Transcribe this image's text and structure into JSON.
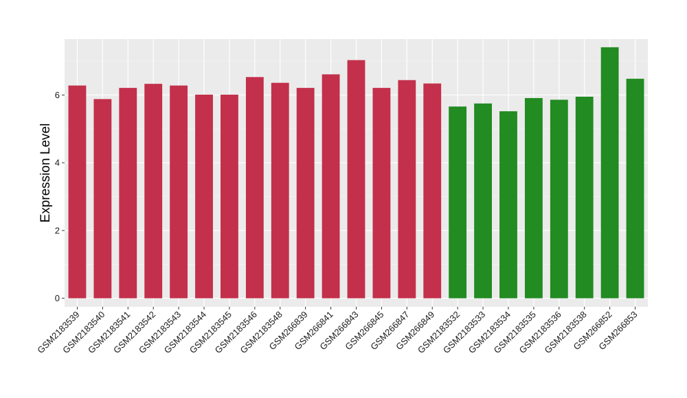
{
  "chart_data": {
    "type": "bar",
    "title": "",
    "xlabel": "",
    "ylabel": "Expression Level",
    "ylim": [
      -0.25,
      7.65
    ],
    "yticks": [
      0,
      2,
      4,
      6
    ],
    "grid": true,
    "legend": "none",
    "colors": {
      "panel_background": "#ebebeb",
      "grid_major": "#ffffff",
      "grid_minor": "#f5f5f5",
      "group_a": "#c3304b",
      "group_b": "#228b22"
    },
    "categories": [
      "GSM2183539",
      "GSM2183540",
      "GSM2183541",
      "GSM2183542",
      "GSM2183543",
      "GSM2183544",
      "GSM2183545",
      "GSM2183546",
      "GSM2183548",
      "GSM266839",
      "GSM266841",
      "GSM266843",
      "GSM266845",
      "GSM266847",
      "GSM266849",
      "GSM2183532",
      "GSM2183533",
      "GSM2183534",
      "GSM2183535",
      "GSM2183536",
      "GSM2183538",
      "GSM266852",
      "GSM266853"
    ],
    "values": [
      6.28,
      5.88,
      6.21,
      6.33,
      6.28,
      6.01,
      6.01,
      6.53,
      6.36,
      6.21,
      6.61,
      7.03,
      6.21,
      6.44,
      6.34,
      5.66,
      5.75,
      5.52,
      5.91,
      5.86,
      5.95,
      7.41,
      6.48
    ],
    "groups": [
      "a",
      "a",
      "a",
      "a",
      "a",
      "a",
      "a",
      "a",
      "a",
      "a",
      "a",
      "a",
      "a",
      "a",
      "a",
      "b",
      "b",
      "b",
      "b",
      "b",
      "b",
      "b",
      "b"
    ]
  }
}
